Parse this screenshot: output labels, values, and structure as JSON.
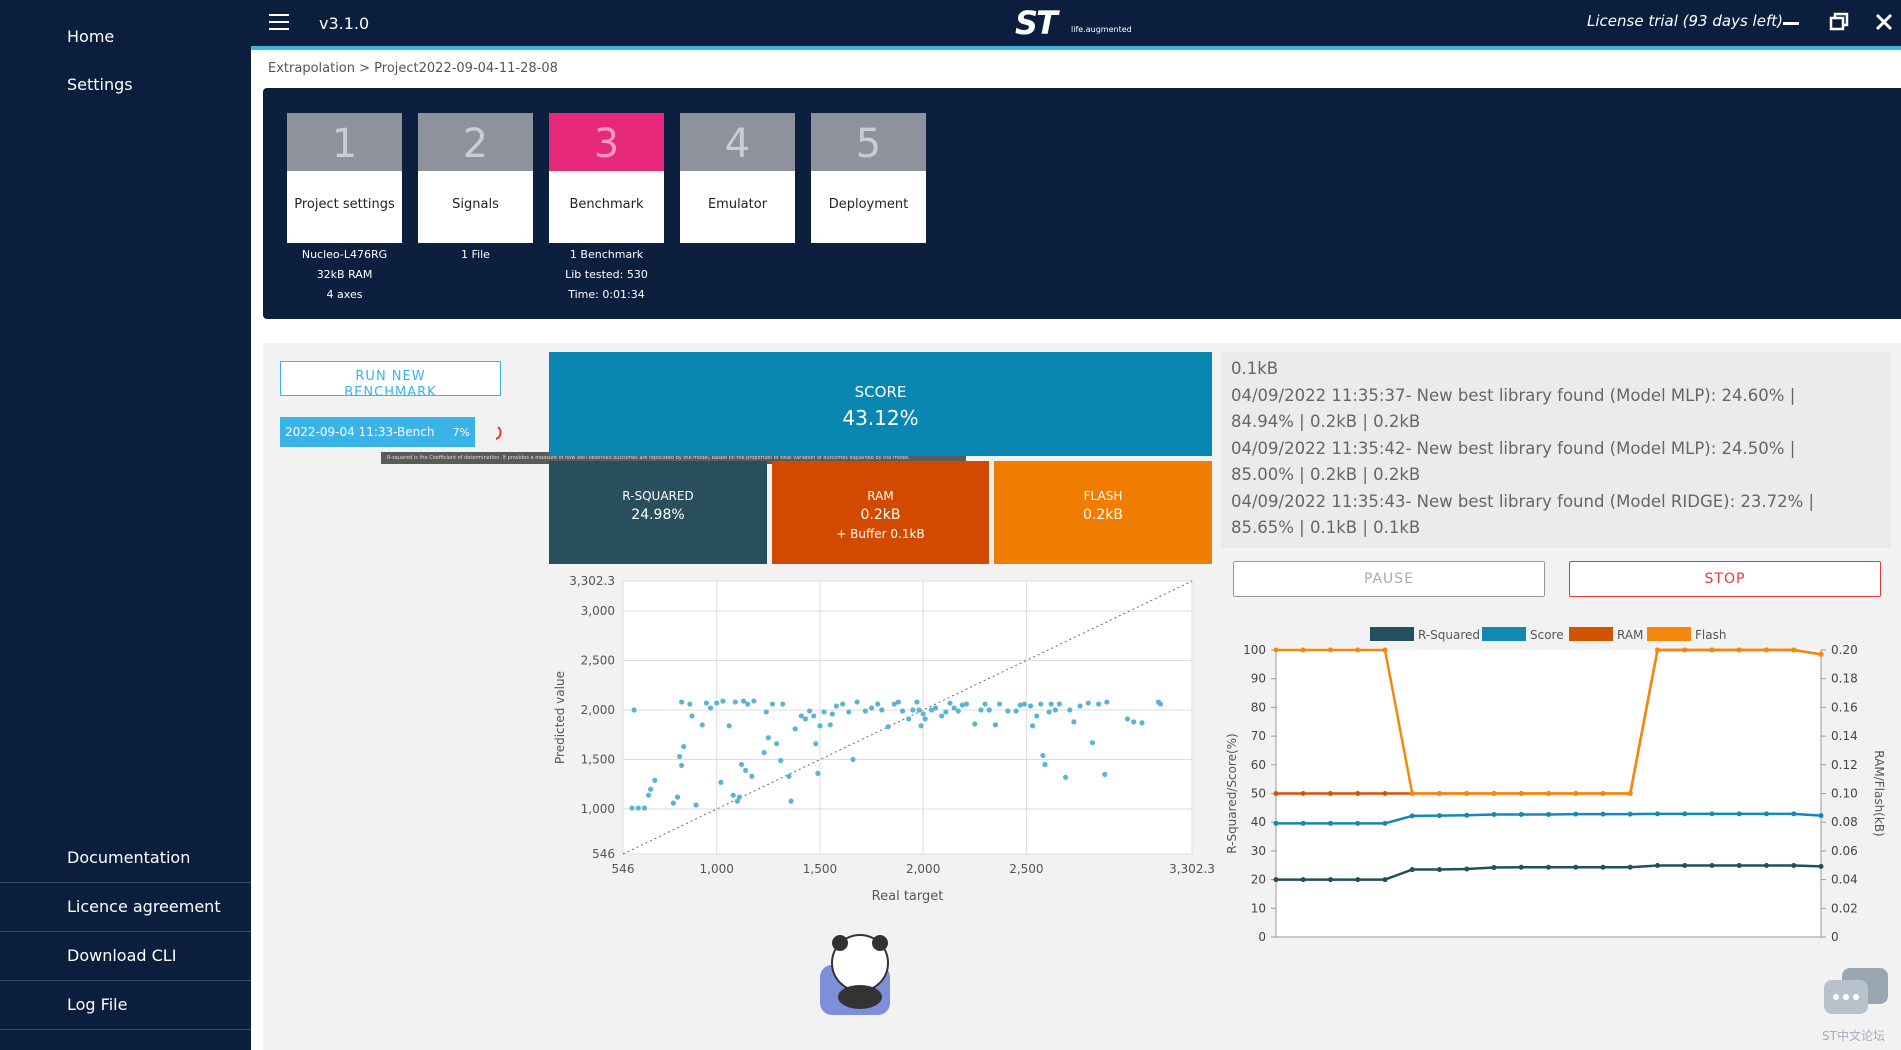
{
  "sidebar": {
    "top": [
      "Home",
      "Settings"
    ],
    "bottom": [
      "Documentation",
      "Licence agreement",
      "Download CLI",
      "Log File"
    ]
  },
  "header": {
    "version": "v3.1.0",
    "logo": "ST",
    "tagline": "life.augmented",
    "license": "License trial (93 days left)"
  },
  "breadcrumb": "Extrapolation > Project2022-09-04-11-28-08",
  "steps": [
    {
      "number": "1",
      "label": "Project settings",
      "details": [
        "Nucleo-L476RG",
        "32kB RAM",
        "4 axes"
      ]
    },
    {
      "number": "2",
      "label": "Signals",
      "details": [
        "1 File"
      ]
    },
    {
      "number": "3",
      "label": "Benchmark",
      "details": [
        "1 Benchmark",
        "Lib tested: 530",
        "Time: 0:01:34"
      ],
      "active": true
    },
    {
      "number": "4",
      "label": "Emulator",
      "details": []
    },
    {
      "number": "5",
      "label": "Deployment",
      "details": []
    }
  ],
  "benchmark": {
    "run_button": "RUN NEW BENCHMARK",
    "run_name": "2022-09-04 11:33-Bench",
    "progress": "7%",
    "tooltip": "R-squared is the Coefficient of determination. It provides a measure of how well observed outcomes are replicated by the model, based on the proportion of total variation of outcomes explained by the model."
  },
  "metrics": {
    "score": {
      "label": "SCORE",
      "value": "43.12%"
    },
    "r_squared": {
      "label": "R-SQUARED",
      "value": "24.98%"
    },
    "ram": {
      "label": "RAM",
      "value": "0.2kB",
      "extra": "+ Buffer 0.1kB"
    },
    "flash": {
      "label": "FLASH",
      "value": "0.2kB"
    }
  },
  "log": [
    "0.1kB",
    "04/09/2022 11:35:37- New best library found (Model MLP): 24.60% | 84.94% | 0.2kB | 0.2kB",
    "04/09/2022 11:35:42- New best library found (Model MLP): 24.50% | 85.00% | 0.2kB | 0.2kB",
    "04/09/2022 11:35:43- New best library found (Model RIDGE): 23.72% | 85.65% | 0.1kB | 0.1kB"
  ],
  "controls": {
    "pause": "PAUSE",
    "stop": "STOP"
  },
  "forum": "ST中文论坛",
  "chart_data": [
    {
      "type": "scatter",
      "x_label": "Real target",
      "y_label": "Predicted value",
      "color": "#5ab4d6",
      "grid": true,
      "xlim": [
        546,
        3302.3
      ],
      "ylim": [
        546,
        3302.3
      ],
      "xticks": [
        546,
        {
          "value": 1000,
          "label": "1,000"
        },
        {
          "value": 1500,
          "label": "1,500"
        },
        {
          "value": 2000,
          "label": "2,000"
        },
        {
          "value": 2500,
          "label": "2,500"
        },
        {
          "value": 3302.3,
          "label": "3,302.3"
        }
      ],
      "yticks": [
        546,
        {
          "value": 1000,
          "label": "1,000"
        },
        {
          "value": 1500,
          "label": "1,500"
        },
        {
          "value": 2000,
          "label": "2,000"
        },
        {
          "value": 2500,
          "label": "2,500"
        },
        {
          "value": 3000,
          "label": "3,000"
        },
        {
          "value": 3302.3,
          "label": "3,302.3"
        }
      ],
      "x": [
        600,
        590,
        620,
        650,
        670,
        680,
        700,
        790,
        810,
        820,
        830,
        830,
        840,
        870,
        880,
        900,
        930,
        950,
        970,
        1000,
        1020,
        1030,
        1060,
        1080,
        1090,
        1100,
        1110,
        1120,
        1130,
        1140,
        1150,
        1170,
        1180,
        1230,
        1240,
        1250,
        1270,
        1290,
        1310,
        1320,
        1350,
        1360,
        1380,
        1410,
        1430,
        1450,
        1470,
        1480,
        1490,
        1500,
        1520,
        1550,
        1560,
        1580,
        1610,
        1640,
        1660,
        1680,
        1720,
        1750,
        1780,
        1800,
        1830,
        1860,
        1880,
        1900,
        1930,
        1950,
        1970,
        1980,
        2000,
        1990,
        2010,
        2040,
        2060,
        2090,
        2110,
        2130,
        2150,
        2170,
        2190,
        2210,
        2250,
        2280,
        2300,
        2320,
        2350,
        2370,
        2410,
        2450,
        2470,
        2490,
        2520,
        2530,
        2550,
        2570,
        2580,
        2590,
        2610,
        2620,
        2640,
        2660,
        2690,
        2710,
        2730,
        2760,
        2800,
        2820,
        2850,
        2880,
        2890,
        2990,
        3020,
        3060,
        3140,
        3150
      ],
      "values": [
        2000,
        1010,
        1010,
        1010,
        1140,
        1200,
        1290,
        1060,
        1120,
        1530,
        1440,
        2080,
        1630,
        2060,
        1940,
        1040,
        1850,
        2070,
        2020,
        2070,
        1270,
        2090,
        1840,
        1140,
        2080,
        1080,
        1120,
        1450,
        2090,
        1390,
        2060,
        1330,
        2090,
        1570,
        1980,
        1720,
        2060,
        1660,
        1490,
        2060,
        1330,
        1080,
        1810,
        1940,
        1910,
        1990,
        1940,
        1660,
        1360,
        1840,
        1980,
        1850,
        1960,
        2040,
        2060,
        1980,
        1500,
        2080,
        1990,
        2020,
        2060,
        2000,
        1830,
        2060,
        2080,
        1990,
        1910,
        2000,
        2080,
        2000,
        1960,
        1840,
        1910,
        2000,
        2020,
        1940,
        1980,
        2070,
        2020,
        1990,
        2050,
        2060,
        1860,
        2000,
        2060,
        2000,
        1850,
        2060,
        1990,
        1990,
        2050,
        2060,
        2040,
        1840,
        1940,
        2060,
        1540,
        1450,
        1980,
        2060,
        2000,
        2060,
        1320,
        2000,
        1880,
        2040,
        2070,
        1670,
        2060,
        1350,
        2080,
        1910,
        1880,
        1870,
        2080,
        2060
      ]
    },
    {
      "type": "line",
      "y_label": "R-Squared/Score(%)",
      "y2_label": "RAM/Flash(kB)",
      "grid": false,
      "legend": "top",
      "categories": [
        null,
        null,
        null,
        null,
        null,
        null,
        null,
        null,
        null,
        null,
        null,
        null,
        null,
        null,
        null,
        null,
        null,
        null,
        null,
        null,
        null
      ],
      "ylim": [
        0,
        100
      ],
      "yticks": [
        0,
        10,
        20,
        30,
        40,
        50,
        60,
        70,
        80,
        90,
        100
      ],
      "y2lim": [
        0,
        0.2
      ],
      "y2ticks": [
        0,
        0.02,
        0.04,
        0.06,
        0.08,
        {
          "value": 0.1,
          "label": "0.10"
        },
        0.12,
        0.14,
        0.16,
        0.18,
        {
          "value": 0.2,
          "label": "0.20"
        }
      ],
      "series": [
        {
          "name": "R-Squared",
          "color": "#234f5e",
          "values": [
            20,
            20,
            20,
            20,
            20,
            23.5,
            23.5,
            23.7,
            24.2,
            24.3,
            24.3,
            24.3,
            24.3,
            24.3,
            24.9,
            24.9,
            24.9,
            24.9,
            24.9,
            24.9,
            24.6
          ]
        },
        {
          "name": "Score",
          "color": "#1589b3",
          "values": [
            39.6,
            39.6,
            39.6,
            39.6,
            39.6,
            42.2,
            42.3,
            42.4,
            42.7,
            42.7,
            42.7,
            42.8,
            42.8,
            42.8,
            42.9,
            42.9,
            42.9,
            42.9,
            42.9,
            42.9,
            42.3
          ]
        },
        {
          "name": "RAM",
          "color": "#d35400",
          "axis": "y2",
          "values": [
            0.1,
            0.1,
            0.1,
            0.1,
            0.1,
            0.1,
            0.1,
            0.1,
            0.1,
            0.1,
            0.1,
            0.1,
            0.1,
            0.1,
            0.2,
            0.2,
            0.2,
            0.2,
            0.2,
            0.2,
            0.197
          ]
        },
        {
          "name": "Flash",
          "color": "#f5870f",
          "axis": "y2",
          "values": [
            0.2,
            0.2,
            0.2,
            0.2,
            0.2,
            0.1,
            0.1,
            0.1,
            0.1,
            0.1,
            0.1,
            0.1,
            0.1,
            0.1,
            0.2,
            0.2,
            0.2,
            0.2,
            0.2,
            0.2,
            0.197
          ]
        }
      ]
    }
  ]
}
